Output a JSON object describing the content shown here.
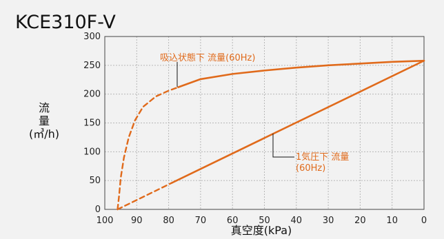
{
  "chart_data": {
    "type": "line",
    "title": "KCE310F-V",
    "xlabel": "真空度(kPa)",
    "ylabel_lines": [
      "流",
      "量",
      "(㎥/h)"
    ],
    "xlim": [
      100,
      0
    ],
    "ylim": [
      0,
      300
    ],
    "x_ticks": [
      100,
      90,
      80,
      70,
      60,
      50,
      40,
      30,
      20,
      10,
      0
    ],
    "y_ticks": [
      0,
      50,
      100,
      150,
      200,
      250,
      300
    ],
    "grid": true,
    "series_color": "#e06a1b",
    "series": [
      {
        "name": "吸込状態下 流量(60Hz)",
        "label_lines": [
          "吸込状態下 流量(60Hz)"
        ],
        "dashed_until_x": 77,
        "points": [
          {
            "x": 96,
            "y": 0
          },
          {
            "x": 95.5,
            "y": 25
          },
          {
            "x": 95,
            "y": 55
          },
          {
            "x": 94,
            "y": 90
          },
          {
            "x": 92.5,
            "y": 125
          },
          {
            "x": 90.5,
            "y": 155
          },
          {
            "x": 88,
            "y": 178
          },
          {
            "x": 84,
            "y": 196
          },
          {
            "x": 80,
            "y": 206
          },
          {
            "x": 77,
            "y": 212
          },
          {
            "x": 70,
            "y": 226
          },
          {
            "x": 60,
            "y": 235
          },
          {
            "x": 50,
            "y": 241
          },
          {
            "x": 40,
            "y": 246
          },
          {
            "x": 30,
            "y": 250
          },
          {
            "x": 20,
            "y": 253
          },
          {
            "x": 10,
            "y": 256
          },
          {
            "x": 0,
            "y": 258
          }
        ]
      },
      {
        "name": "1気圧下 流量(60Hz)",
        "label_lines": [
          "1気圧下 流量",
          "(60Hz)"
        ],
        "dashed_until_x": 79,
        "points": [
          {
            "x": 96,
            "y": 0
          },
          {
            "x": 79,
            "y": 46
          },
          {
            "x": 0,
            "y": 258
          }
        ]
      }
    ]
  }
}
